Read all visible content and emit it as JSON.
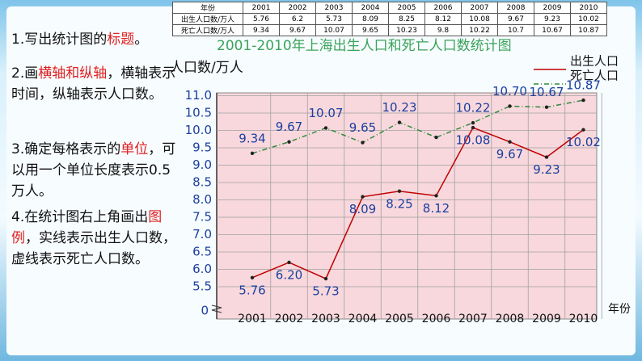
{
  "table": {
    "rows": [
      [
        "年份",
        "2001",
        "2002",
        "2003",
        "2004",
        "2005",
        "2006",
        "2007",
        "2008",
        "2009",
        "2010"
      ],
      [
        "出生人口数/万人",
        "5.76",
        "6.2",
        "5.73",
        "8.09",
        "8.25",
        "8.12",
        "10.08",
        "9.67",
        "9.23",
        "10.02"
      ],
      [
        "死亡人口数/万人",
        "9.34",
        "9.67",
        "10.07",
        "9.65",
        "10.23",
        "9.8",
        "10.22",
        "10.7",
        "10.67",
        "10.87"
      ]
    ]
  },
  "steps": [
    [
      "1.写出统计图的",
      "标题",
      "。"
    ],
    [
      "2.画",
      "横轴和纵轴",
      "，横轴表示时间，纵轴表示人口数。"
    ],
    [
      "3.确定每格表示的",
      "单位",
      "，可以用一个单位长度表示0.5万人。"
    ],
    [
      "4.在统计图右上角画出",
      "图例",
      "，实线表示出生人口数，虚线表示死亡人口数。"
    ]
  ],
  "chart_data": {
    "type": "line",
    "title": "2001-2010年上海出生人口和死亡人口数统计图",
    "y_label": "人口数/万人",
    "x_label": "年份",
    "y_origin_label": "0",
    "categories": [
      "2001",
      "2002",
      "2003",
      "2004",
      "2005",
      "2006",
      "2007",
      "2008",
      "2009",
      "2010"
    ],
    "series": [
      {
        "name": "出生人口",
        "color": "#c00000",
        "dash": false,
        "values": [
          5.76,
          6.2,
          5.73,
          8.09,
          8.25,
          8.12,
          10.08,
          9.67,
          9.23,
          10.02
        ],
        "value_labels": [
          "5.76",
          "6.20",
          "5.73",
          "8.09",
          "8.25",
          "8.12",
          "10.08",
          "9.67",
          "9.23",
          "10.02"
        ]
      },
      {
        "name": "死亡人口",
        "color": "#2e8b3e",
        "dash": true,
        "values": [
          9.34,
          9.67,
          10.07,
          9.65,
          10.23,
          9.8,
          10.22,
          10.7,
          10.67,
          10.87
        ],
        "value_labels": [
          "9.34",
          "9.67",
          "10.07",
          "9.65",
          "10.23",
          null,
          "10.22",
          "10.70",
          "10.67",
          "10.87"
        ]
      }
    ],
    "ylim": [
      5,
      11
    ],
    "yticks": [
      5.5,
      {
        "value": 6,
        "label": "6.0"
      },
      6.5,
      {
        "value": 7,
        "label": "7.0"
      },
      7.5,
      {
        "value": 8,
        "label": "8.0"
      },
      8.5,
      {
        "value": 9,
        "label": "9.0"
      },
      9.5,
      {
        "value": 10,
        "label": "10.0"
      },
      10.5,
      {
        "value": 11,
        "label": "11.0"
      }
    ],
    "grid": true
  }
}
